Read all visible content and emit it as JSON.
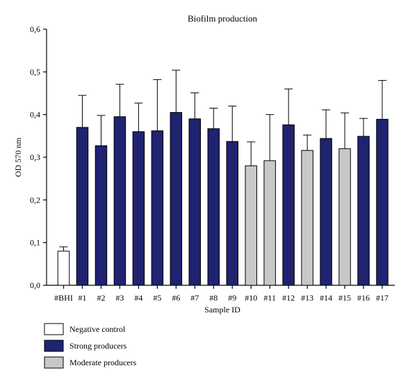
{
  "chart_data": {
    "type": "bar",
    "title": "Biofilm production",
    "xlabel": "Sample ID",
    "ylabel": "OD 570 nm",
    "ylim": [
      0,
      0.6
    ],
    "yticks": [
      "0,0",
      "0,1",
      "0,2",
      "0,3",
      "0,4",
      "0,5",
      "0,6"
    ],
    "ytick_values": [
      0,
      0.1,
      0.2,
      0.3,
      0.4,
      0.5,
      0.6
    ],
    "categories": [
      "#BHI",
      "#1",
      "#2",
      "#3",
      "#4",
      "#5",
      "#6",
      "#7",
      "#8",
      "#9",
      "#10",
      "#11",
      "#12",
      "#13",
      "#14",
      "#15",
      "#16",
      "#17"
    ],
    "values": [
      0.08,
      0.37,
      0.327,
      0.395,
      0.36,
      0.362,
      0.405,
      0.39,
      0.367,
      0.337,
      0.28,
      0.292,
      0.376,
      0.316,
      0.344,
      0.32,
      0.349,
      0.389
    ],
    "errors": [
      0.01,
      0.075,
      0.071,
      0.076,
      0.067,
      0.12,
      0.099,
      0.061,
      0.048,
      0.083,
      0.056,
      0.108,
      0.084,
      0.036,
      0.067,
      0.084,
      0.042,
      0.091
    ],
    "groups": [
      "negative",
      "strong",
      "strong",
      "strong",
      "strong",
      "strong",
      "strong",
      "strong",
      "strong",
      "strong",
      "moderate",
      "moderate",
      "strong",
      "moderate",
      "strong",
      "moderate",
      "strong",
      "strong"
    ],
    "legend": [
      {
        "key": "negative",
        "label": "Negative control",
        "color": "#ffffff"
      },
      {
        "key": "strong",
        "label": "Strong producers",
        "color": "#1f2370"
      },
      {
        "key": "moderate",
        "label": "Moderate producers",
        "color": "#c8c8c8"
      }
    ],
    "legend_position": "bottom-left",
    "grid": false
  }
}
